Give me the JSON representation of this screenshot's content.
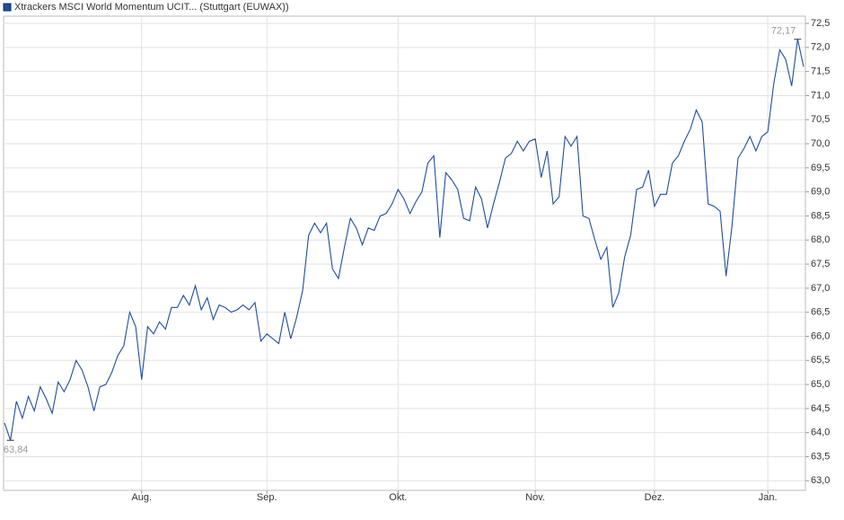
{
  "chart_data": {
    "type": "line",
    "series": [
      {
        "name": "Xtrackers MSCI World Momentum UCIT... (Stuttgart (EUWAX))",
        "color": "#1f4e9c",
        "values": [
          64.2,
          63.84,
          64.65,
          64.3,
          64.75,
          64.45,
          64.95,
          64.7,
          64.4,
          65.05,
          64.85,
          65.1,
          65.5,
          65.3,
          64.95,
          64.45,
          64.95,
          65.0,
          65.25,
          65.6,
          65.8,
          66.5,
          66.2,
          65.1,
          66.2,
          66.05,
          66.3,
          66.15,
          66.6,
          66.6,
          66.85,
          66.65,
          67.05,
          66.55,
          66.8,
          66.35,
          66.65,
          66.6,
          66.5,
          66.55,
          66.65,
          66.55,
          66.7,
          65.9,
          66.05,
          65.95,
          65.85,
          66.5,
          65.95,
          66.4,
          66.95,
          68.1,
          68.35,
          68.15,
          68.35,
          67.4,
          67.2,
          67.85,
          68.45,
          68.25,
          67.9,
          68.25,
          68.2,
          68.5,
          68.55,
          68.75,
          69.05,
          68.85,
          68.55,
          68.8,
          69.0,
          69.6,
          69.75,
          68.05,
          69.4,
          69.25,
          69.05,
          68.45,
          68.4,
          69.1,
          68.85,
          68.25,
          68.75,
          69.2,
          69.7,
          69.8,
          70.05,
          69.85,
          70.05,
          70.1,
          69.3,
          69.85,
          68.75,
          68.9,
          70.15,
          69.95,
          70.15,
          68.5,
          68.45,
          68.0,
          67.6,
          67.85,
          66.6,
          66.9,
          67.65,
          68.1,
          69.05,
          69.1,
          69.45,
          68.7,
          68.95,
          68.95,
          69.6,
          69.75,
          70.05,
          70.3,
          70.7,
          70.45,
          68.75,
          68.7,
          68.6,
          67.25,
          68.3,
          69.7,
          69.9,
          70.15,
          69.85,
          70.15,
          70.25,
          71.25,
          71.95,
          71.75,
          71.2,
          72.17,
          71.6
        ],
        "value_labels": [
          null,
          "63,84",
          null,
          null,
          null,
          null,
          null,
          null,
          null,
          null,
          null,
          null,
          null,
          null,
          null,
          null,
          null,
          null,
          null,
          null,
          null,
          null,
          null,
          null,
          null,
          null,
          null,
          null,
          null,
          null,
          null,
          null,
          null,
          null,
          null,
          null,
          null,
          null,
          null,
          null,
          null,
          null,
          null,
          null,
          null,
          null,
          null,
          null,
          null,
          null,
          null,
          null,
          null,
          null,
          null,
          null,
          null,
          null,
          null,
          null,
          null,
          null,
          null,
          null,
          null,
          null,
          null,
          null,
          null,
          null,
          null,
          null,
          null,
          null,
          null,
          null,
          null,
          null,
          null,
          null,
          null,
          null,
          null,
          null,
          null,
          null,
          null,
          null,
          null,
          null,
          null,
          null,
          null,
          null,
          null,
          null,
          null,
          null,
          null,
          null,
          null,
          null,
          null,
          null,
          null,
          null,
          null,
          null,
          null,
          null,
          null,
          null,
          null,
          null,
          null,
          null,
          null,
          null,
          null,
          null,
          null,
          null,
          null,
          null,
          null,
          null,
          null,
          null,
          null,
          null,
          null,
          null,
          null,
          "72,17",
          null
        ]
      }
    ],
    "categories": [
      null,
      null,
      null,
      null,
      null,
      null,
      null,
      null,
      null,
      null,
      null,
      null,
      null,
      null,
      null,
      null,
      null,
      null,
      null,
      null,
      null,
      null,
      null,
      "Aug.",
      null,
      null,
      null,
      null,
      null,
      null,
      null,
      null,
      null,
      null,
      null,
      null,
      null,
      null,
      null,
      null,
      null,
      null,
      null,
      null,
      "Sep.",
      null,
      null,
      null,
      null,
      null,
      null,
      null,
      null,
      null,
      null,
      null,
      null,
      null,
      null,
      null,
      null,
      null,
      null,
      null,
      null,
      null,
      "Okt.",
      null,
      null,
      null,
      null,
      null,
      null,
      null,
      null,
      null,
      null,
      null,
      null,
      null,
      null,
      null,
      null,
      null,
      null,
      null,
      null,
      null,
      null,
      "Nov.",
      null,
      null,
      null,
      null,
      null,
      null,
      null,
      null,
      null,
      null,
      null,
      null,
      null,
      null,
      null,
      null,
      null,
      null,
      null,
      "Dez.",
      null,
      null,
      null,
      null,
      null,
      null,
      null,
      null,
      null,
      null,
      null,
      null,
      null,
      null,
      null,
      null,
      null,
      null,
      "Jan.",
      null,
      null,
      null,
      null,
      null,
      null
    ],
    "ylim": [
      62.8,
      72.65
    ],
    "yticks": [
      {
        "value": 63.0,
        "label": "63,0"
      },
      {
        "value": 63.5,
        "label": "63,5"
      },
      {
        "value": 64.0,
        "label": "64,0"
      },
      {
        "value": 64.5,
        "label": "64,5"
      },
      {
        "value": 65.0,
        "label": "65,0"
      },
      {
        "value": 65.5,
        "label": "65,5"
      },
      {
        "value": 66.0,
        "label": "66,0"
      },
      {
        "value": 66.5,
        "label": "66,5"
      },
      {
        "value": 67.0,
        "label": "67,0"
      },
      {
        "value": 67.5,
        "label": "67,5"
      },
      {
        "value": 68.0,
        "label": "68,0"
      },
      {
        "value": 68.5,
        "label": "68,5"
      },
      {
        "value": 69.0,
        "label": "69,0"
      },
      {
        "value": 69.5,
        "label": "69,5"
      },
      {
        "value": 70.0,
        "label": "70,0"
      },
      {
        "value": 70.5,
        "label": "70,5"
      },
      {
        "value": 71.0,
        "label": "71,0"
      },
      {
        "value": 71.5,
        "label": "71,5"
      },
      {
        "value": 72.0,
        "label": "72,0"
      },
      {
        "value": 72.5,
        "label": "72,5"
      }
    ],
    "grid": true
  }
}
